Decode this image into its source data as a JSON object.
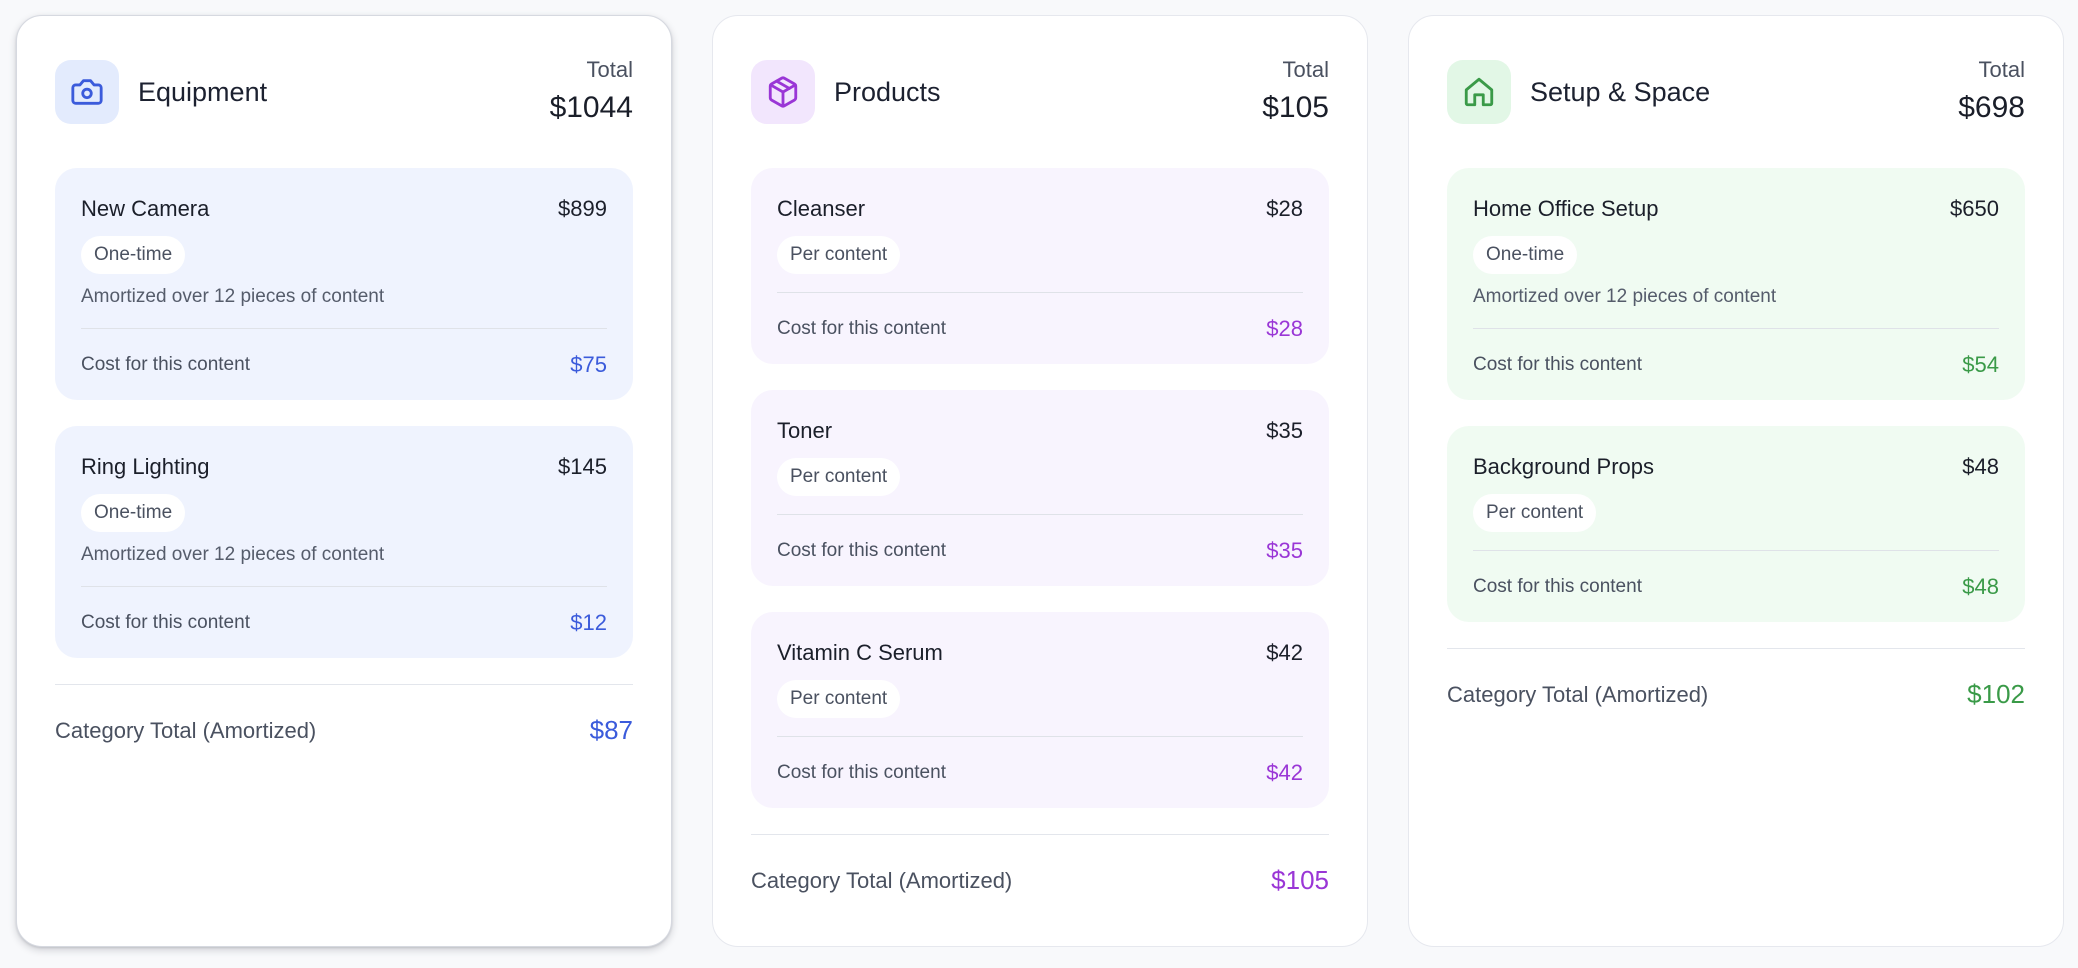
{
  "columns": [
    {
      "title": "Equipment",
      "icon": "camera-icon",
      "accent": "#3b5bdb",
      "tile_bg": "#e3ebfd",
      "item_bg": "#eff3fe",
      "total_label": "Total",
      "total": "$1044",
      "items": [
        {
          "name": "New Camera",
          "price": "$899",
          "badge": "One-time",
          "note": "Amortized over 12 pieces of content",
          "cost_label": "Cost for this content",
          "cost": "$75"
        },
        {
          "name": "Ring Lighting",
          "price": "$145",
          "badge": "One-time",
          "note": "Amortized over 12 pieces of content",
          "cost_label": "Cost for this content",
          "cost": "$12"
        }
      ],
      "category_total_label": "Category Total (Amortized)",
      "category_total": "$87"
    },
    {
      "title": "Products",
      "icon": "package-icon",
      "accent": "#9a36d6",
      "tile_bg": "#f2e6fd",
      "item_bg": "#f8f4fe",
      "total_label": "Total",
      "total": "$105",
      "items": [
        {
          "name": "Cleanser",
          "price": "$28",
          "badge": "Per content",
          "cost_label": "Cost for this content",
          "cost": "$28"
        },
        {
          "name": "Toner",
          "price": "$35",
          "badge": "Per content",
          "cost_label": "Cost for this content",
          "cost": "$35"
        },
        {
          "name": "Vitamin C Serum",
          "price": "$42",
          "badge": "Per content",
          "cost_label": "Cost for this content",
          "cost": "$42"
        }
      ],
      "category_total_label": "Category Total (Amortized)",
      "category_total": "$105"
    },
    {
      "title": "Setup & Space",
      "icon": "home-icon",
      "accent": "#3a9a48",
      "tile_bg": "#e2f7e6",
      "item_bg": "#f0fbf2",
      "total_label": "Total",
      "total": "$698",
      "items": [
        {
          "name": "Home Office Setup",
          "price": "$650",
          "badge": "One-time",
          "note": "Amortized over 12 pieces of content",
          "cost_label": "Cost for this content",
          "cost": "$54"
        },
        {
          "name": "Background Props",
          "price": "$48",
          "badge": "Per content",
          "cost_label": "Cost for this content",
          "cost": "$48"
        }
      ],
      "category_total_label": "Category Total (Amortized)",
      "category_total": "$102"
    }
  ]
}
